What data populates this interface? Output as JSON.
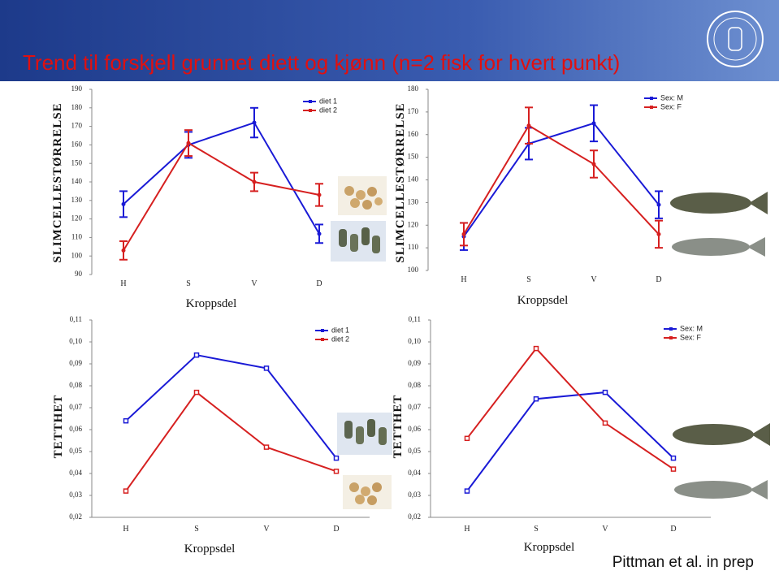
{
  "title": "Trend til forskjell grunnet diett og kjønn (n=2 fisk for hvert punkt)",
  "credit": "Pittman et al. in prep",
  "chart_data": [
    {
      "type": "line",
      "ylabel": "SLIMCELLESTØRRELSE",
      "xlabel": "Kroppsdel",
      "categories": [
        "H",
        "S",
        "V",
        "D"
      ],
      "series": [
        {
          "name": "diet 1",
          "color": "#1a1ad6",
          "values": [
            128,
            160,
            172,
            112
          ],
          "errors": [
            7,
            7,
            8,
            5
          ]
        },
        {
          "name": "diet 2",
          "color": "#d62020",
          "values": [
            103,
            161,
            140,
            133
          ],
          "errors": [
            5,
            7,
            5,
            6
          ]
        }
      ],
      "ylim": [
        90,
        190
      ],
      "yticks": [
        90,
        100,
        110,
        120,
        130,
        140,
        150,
        160,
        170,
        180,
        190
      ]
    },
    {
      "type": "line",
      "ylabel": "SLIMCELLESTØRRELSE",
      "xlabel": "Kroppsdel",
      "categories": [
        "H",
        "S",
        "V",
        "D"
      ],
      "series": [
        {
          "name": "Sex: M",
          "color": "#1a1ad6",
          "values": [
            115,
            156,
            165,
            129
          ],
          "errors": [
            6,
            7,
            8,
            6
          ]
        },
        {
          "name": "Sex: F",
          "color": "#d62020",
          "values": [
            116,
            164,
            147,
            116
          ],
          "errors": [
            5,
            8,
            6,
            6
          ]
        }
      ],
      "ylim": [
        100,
        180
      ],
      "yticks": [
        100,
        110,
        120,
        130,
        140,
        150,
        160,
        170,
        180
      ]
    },
    {
      "type": "line",
      "ylabel": "TETTHET",
      "xlabel": "Kroppsdel",
      "categories": [
        "H",
        "S",
        "V",
        "D"
      ],
      "series": [
        {
          "name": "diet 1",
          "color": "#1a1ad6",
          "values": [
            0.064,
            0.094,
            0.088,
            0.047
          ]
        },
        {
          "name": "diet 2",
          "color": "#d62020",
          "values": [
            0.032,
            0.077,
            0.052,
            0.041
          ]
        }
      ],
      "ylim": [
        0.02,
        0.11
      ],
      "yticks": [
        {
          "value": 0.02,
          "label": "0,02"
        },
        {
          "value": 0.03,
          "label": "0,03"
        },
        {
          "value": 0.04,
          "label": "0,04"
        },
        {
          "value": 0.05,
          "label": "0,05"
        },
        {
          "value": 0.06,
          "label": "0,06"
        },
        {
          "value": 0.07,
          "label": "0,07"
        },
        {
          "value": 0.08,
          "label": "0,08"
        },
        {
          "value": 0.09,
          "label": "0,09"
        },
        {
          "value": 0.1,
          "label": "0,10"
        },
        {
          "value": 0.11,
          "label": "0,11"
        }
      ]
    },
    {
      "type": "line",
      "ylabel": "TETTHET",
      "xlabel": "Kroppsdel",
      "categories": [
        "H",
        "S",
        "V",
        "D"
      ],
      "series": [
        {
          "name": "Sex: M",
          "color": "#1a1ad6",
          "values": [
            0.032,
            0.074,
            0.077,
            0.047
          ]
        },
        {
          "name": "Sex: F",
          "color": "#d62020",
          "values": [
            0.056,
            0.097,
            0.063,
            0.042
          ]
        }
      ],
      "ylim": [
        0.02,
        0.11
      ],
      "yticks": [
        {
          "value": 0.02,
          "label": "0,02"
        },
        {
          "value": 0.03,
          "label": "0,03"
        },
        {
          "value": 0.04,
          "label": "0,04"
        },
        {
          "value": 0.05,
          "label": "0,05"
        },
        {
          "value": 0.06,
          "label": "0,06"
        },
        {
          "value": 0.07,
          "label": "0,07"
        },
        {
          "value": 0.08,
          "label": "0,08"
        },
        {
          "value": 0.09,
          "label": "0,09"
        },
        {
          "value": 0.1,
          "label": "0,10"
        },
        {
          "value": 0.11,
          "label": "0,11"
        }
      ]
    }
  ]
}
